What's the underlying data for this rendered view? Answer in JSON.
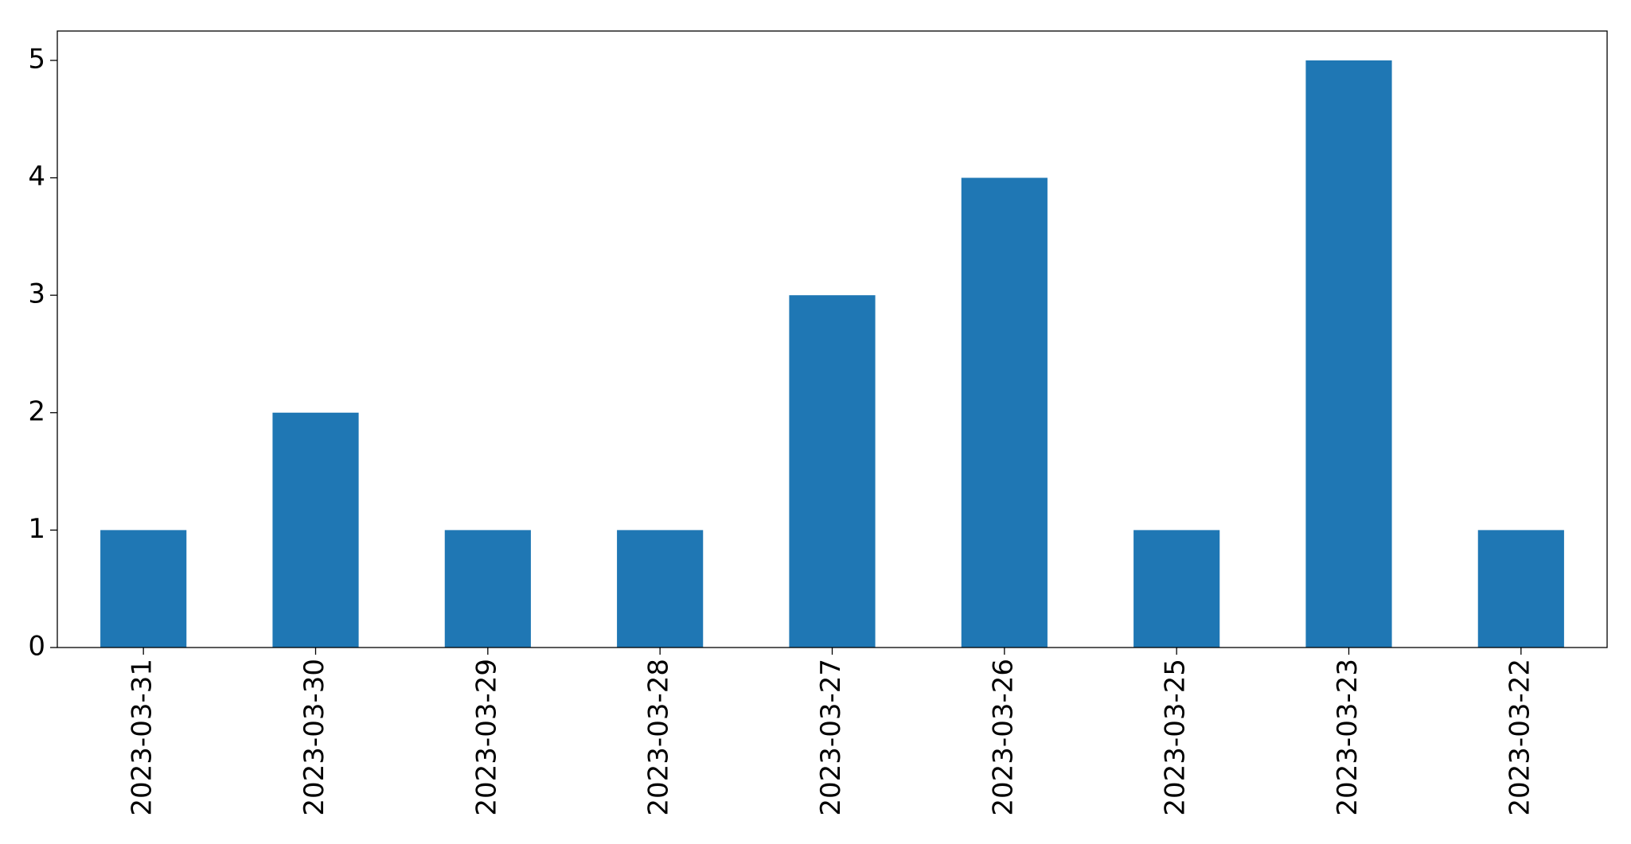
{
  "chart_data": {
    "type": "bar",
    "categories": [
      "2023-03-31",
      "2023-03-30",
      "2023-03-29",
      "2023-03-28",
      "2023-03-27",
      "2023-03-26",
      "2023-03-25",
      "2023-03-23",
      "2023-03-22"
    ],
    "values": [
      1,
      2,
      1,
      1,
      3,
      4,
      1,
      5,
      1
    ],
    "color": "#1f77b4",
    "ylim": [
      0,
      5.25
    ],
    "yticks": [
      0,
      1,
      2,
      3,
      4,
      5
    ],
    "grid": false
  }
}
